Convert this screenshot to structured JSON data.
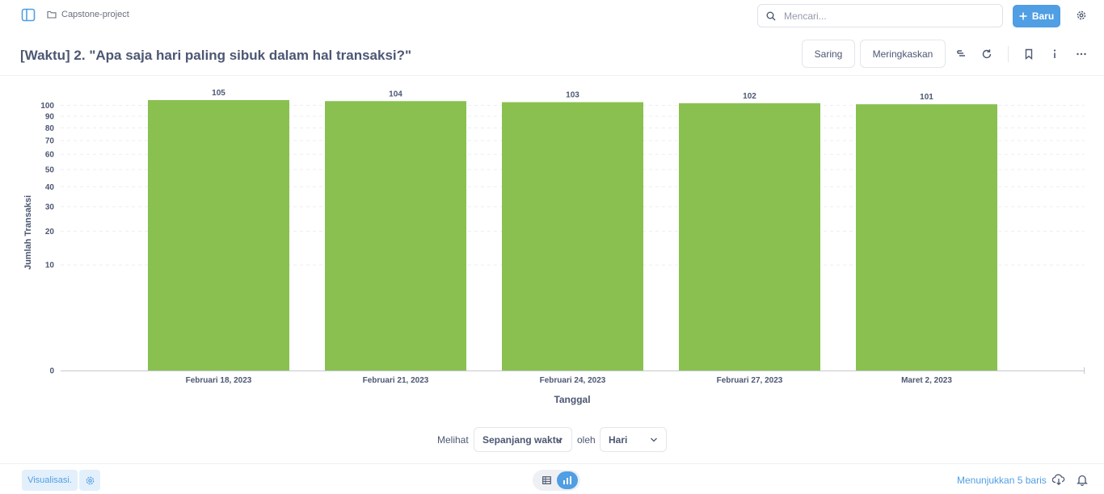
{
  "topbar": {
    "breadcrumb": "Capstone-project",
    "search_placeholder": "Mencari...",
    "new_button_label": "Baru"
  },
  "header": {
    "title": "[Waktu] 2. \"Apa saja hari paling sibuk dalam hal transaksi?\"",
    "filter_label": "Saring",
    "summarize_label": "Meringkaskan"
  },
  "chart_data": {
    "type": "bar",
    "categories": [
      "Februari 18, 2023",
      "Februari 21, 2023",
      "Februari 24, 2023",
      "Februari 27, 2023",
      "Maret 2, 2023"
    ],
    "values": [
      105,
      104,
      103,
      102,
      101
    ],
    "xlabel": "Tanggal",
    "ylabel": "Jumlah Transaksi",
    "yscale": "pow",
    "yticks": [
      0,
      10,
      20,
      30,
      40,
      50,
      60,
      70,
      80,
      90,
      100
    ],
    "ylim": [
      0,
      105
    ],
    "bar_color": "#89c050",
    "grid": true
  },
  "view_controls": {
    "view_label": "Melihat",
    "range_value": "Sepanjang waktu",
    "by_label": "oleh",
    "unit_value": "Hari"
  },
  "footer": {
    "visualization_label": "Visualisasi.",
    "rows_label": "Menunjukkan 5 baris"
  },
  "colors": {
    "accent": "#509ee3",
    "text": "#4c5773",
    "bar": "#89c050"
  }
}
